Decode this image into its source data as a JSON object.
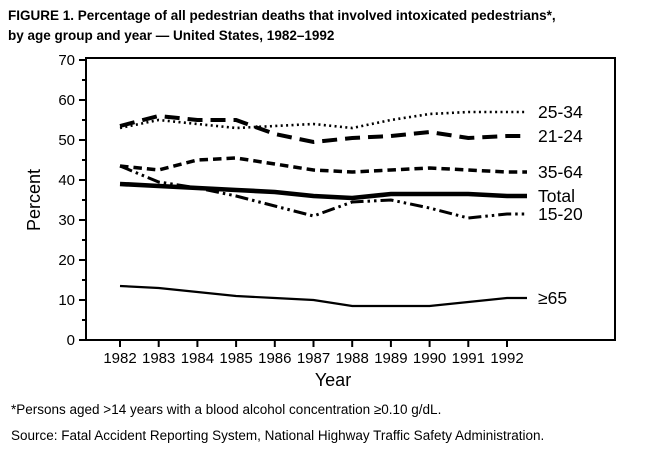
{
  "figure": {
    "title_line1": "FIGURE 1. Percentage of all pedestrian deaths that involved intoxicated pedestrians*,",
    "title_line2": "by age group and year — United States, 1982–1992",
    "footnote": "*Persons aged >14 years with a blood alcohol concentration ≥0.10 g/dL.",
    "source": "Source: Fatal Accident Reporting System, National Highway Traffic Safety Administration."
  },
  "chart_data": {
    "type": "line",
    "title": "Percentage of all pedestrian deaths that involved intoxicated pedestrians, by age group and year — United States, 1982–1992",
    "xlabel": "Year",
    "ylabel": "Percent",
    "ylim": [
      0,
      70
    ],
    "yticks": [
      0,
      10,
      20,
      30,
      40,
      50,
      60,
      70
    ],
    "grid": false,
    "legend_position": "right-inline-labels",
    "colors": {
      "line": "#000000",
      "background": "#ffffff",
      "text": "#000000"
    },
    "x": [
      1982,
      1983,
      1984,
      1985,
      1986,
      1987,
      1988,
      1989,
      1990,
      1991,
      1992
    ],
    "series": [
      {
        "id": "25-34",
        "name": "25-34",
        "style": "dotted",
        "values": [
          53,
          55,
          54,
          53,
          53.5,
          54,
          53,
          55,
          56.5,
          57,
          57
        ]
      },
      {
        "id": "21-24",
        "name": "21-24",
        "style": "long-dash",
        "values": [
          53.5,
          56,
          55,
          55,
          51.5,
          49.5,
          50.5,
          51,
          52,
          50.5,
          51
        ]
      },
      {
        "id": "35-64",
        "name": "35-64",
        "style": "dash",
        "values": [
          43.5,
          42.5,
          45,
          45.5,
          44,
          42.5,
          42,
          42.5,
          43,
          42.5,
          42
        ]
      },
      {
        "id": "total",
        "name": "Total",
        "style": "solid-thick",
        "values": [
          39,
          38.5,
          38,
          37.5,
          37,
          36,
          35.5,
          36.5,
          36.5,
          36.5,
          36
        ]
      },
      {
        "id": "15-20",
        "name": "15-20",
        "style": "dash-dot-dot",
        "values": [
          43.5,
          39.5,
          38,
          36,
          33.5,
          31,
          34.5,
          35,
          33,
          30.5,
          31.5
        ]
      },
      {
        "id": "ge65",
        "name": "≥65",
        "style": "solid-thin",
        "values": [
          13.5,
          13,
          12,
          11,
          10.5,
          10,
          8.5,
          8.5,
          8.5,
          9.5,
          10.5
        ]
      }
    ]
  }
}
